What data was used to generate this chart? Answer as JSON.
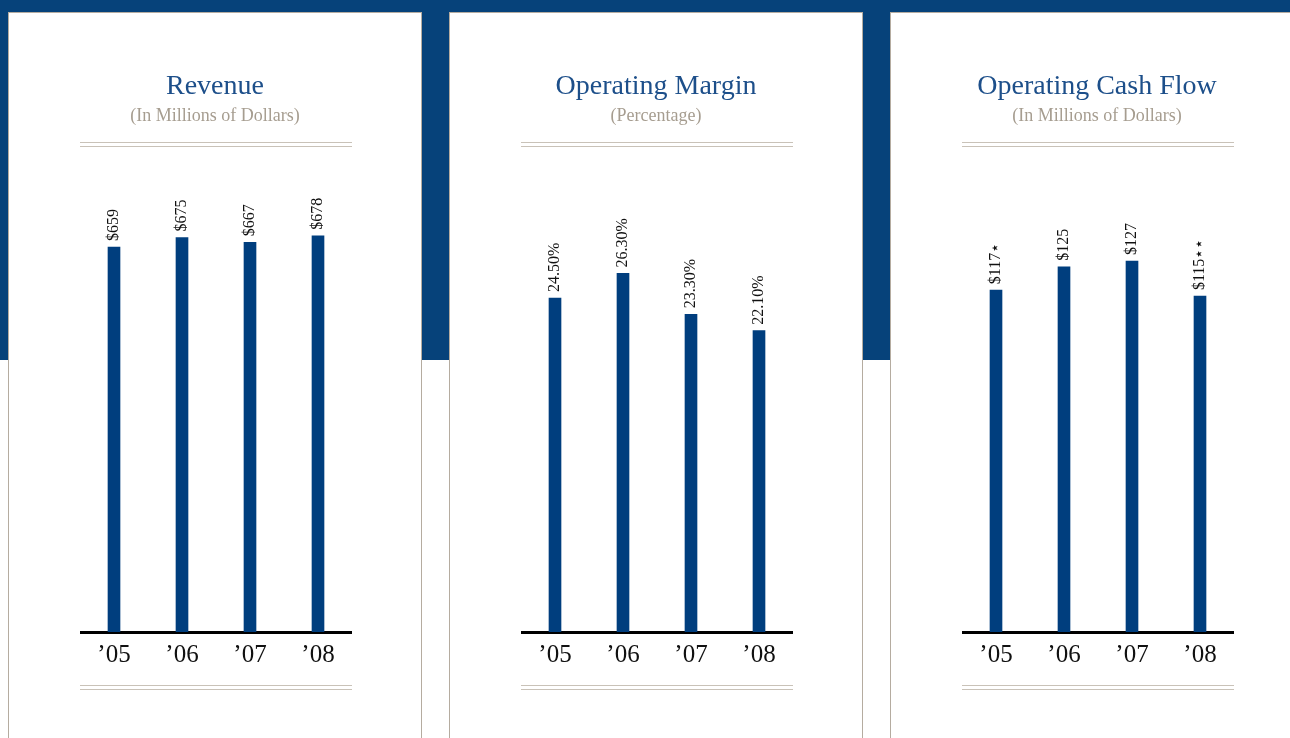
{
  "chart_data": [
    {
      "type": "bar",
      "title": "Revenue",
      "subtitle": "(In Millions of Dollars)",
      "categories": [
        "’05",
        "’06",
        "’07",
        "’08"
      ],
      "values": [
        659,
        675,
        667,
        678
      ],
      "value_labels": [
        "$659",
        "$675",
        "$667",
        "$678"
      ],
      "color": "#003e7e",
      "tick_labels": "x",
      "grid": false,
      "legend": false
    },
    {
      "type": "bar",
      "title": "Operating Margin",
      "subtitle": "(Percentage)",
      "categories": [
        "’05",
        "’06",
        "’07",
        "’08"
      ],
      "values": [
        24.5,
        26.3,
        23.3,
        22.1
      ],
      "value_labels": [
        "24.50%",
        "26.30%",
        "23.30%",
        "22.10%"
      ],
      "color": "#003e7e",
      "tick_labels": "x",
      "grid": false,
      "legend": false
    },
    {
      "type": "bar",
      "title": "Operating Cash Flow",
      "subtitle": "(In Millions of Dollars)",
      "categories": [
        "’05",
        "’06",
        "’07",
        "’08"
      ],
      "values": [
        117,
        125,
        127,
        115
      ],
      "value_labels": [
        "$117⋆",
        "$125",
        "$127",
        "$115⋆⋆"
      ],
      "color": "#003e7e",
      "tick_labels": "x",
      "grid": false,
      "legend": false
    }
  ]
}
